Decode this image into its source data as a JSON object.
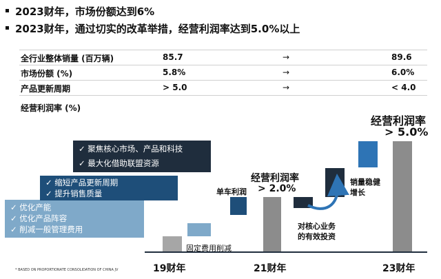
{
  "bullets": [
    "2023财年，市场份额达到6%",
    "2023财年，通过切实的改革举措，经营利润率达到5.0%以上"
  ],
  "table": {
    "rows": [
      {
        "label": "全行业整体销量 (百万辆)",
        "start": "85.7",
        "arrow": "→",
        "end": "89.6"
      },
      {
        "label": "市场份额 (%)",
        "start": "5.8%",
        "arrow": "→",
        "end": "6.0%"
      },
      {
        "label": "产品更新周期",
        "start": "> 5.0",
        "arrow": "→",
        "end": "< 4.0"
      }
    ]
  },
  "chart_label": "经营利润率 (%)",
  "boxes": {
    "dark": {
      "items": [
        "聚焦核心市场、产品和科技",
        "最大化借助联盟资源"
      ],
      "color": "#1f2d3d"
    },
    "mid": {
      "items": [
        "缩短产品更新周期",
        "提升销售质量"
      ],
      "color": "#1e4e79"
    },
    "light": {
      "items": [
        "优化产能",
        "优化产品阵容",
        "削减一般管理费用"
      ],
      "color": "#7fa9c9"
    }
  },
  "annotations": {
    "fixed_cost": "固定费用削减",
    "unit_profit": "单车利润",
    "mid_margin_title": "经营利润率",
    "mid_margin_value": "> 2.0%",
    "sales_growth_line1": "销量稳健",
    "sales_growth_line2": "增长",
    "investment_line1": "对核心业务",
    "investment_line2": "的有效投资",
    "end_margin_title": "经营利润率",
    "end_margin_value": "> 5.0%"
  },
  "x_labels": [
    "19财年",
    "21财年",
    "23财年"
  ],
  "footnote": "* BASED ON PROPORTIONATE CONSOLIDATION OF CHINA JV",
  "colors": {
    "gray": "#8c8c8c",
    "light_gray": "#a6a6a6",
    "blue_light": "#2e74b5",
    "navy": "#1f3864",
    "dark": "#1f2d3d"
  }
}
